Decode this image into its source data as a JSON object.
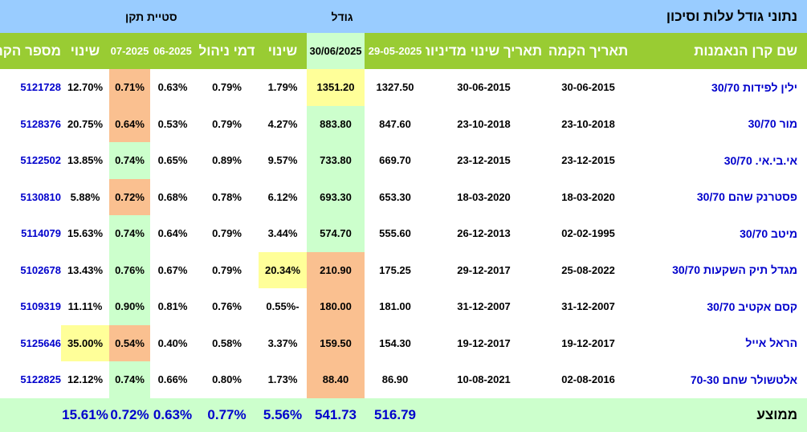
{
  "header": {
    "title": "נתוני גודל עלות וסיכון",
    "size_group": "גודל",
    "deviation_group": "סטיית תקן"
  },
  "columns": {
    "fund_name": "שם קרן הנאמנות",
    "founded": "תאריך הקמה",
    "policy_change": "תאריך שינוי מדיניות",
    "size_prev": "29-05-2025",
    "size_curr": "30/06/2025",
    "size_change": "שינוי",
    "mgmt_fee": "דמי ניהול",
    "sd_prev": "06-2025",
    "sd_curr": "07-2025",
    "sd_change": "שינוי",
    "fund_id": "מספר הקרן"
  },
  "rows": [
    {
      "name": "ילין לפידות 30/70",
      "founded": "30-06-2015",
      "policy": "30-06-2015",
      "size_prev": "1327.50",
      "size_curr": "1351.20",
      "size_change": "1.79%",
      "fee": "0.79%",
      "sd_prev": "0.63%",
      "sd_curr": "0.71%",
      "sd_change": "12.70%",
      "id": "5121728"
    },
    {
      "name": "מור 30/70",
      "founded": "23-10-2018",
      "policy": "23-10-2018",
      "size_prev": "847.60",
      "size_curr": "883.80",
      "size_change": "4.27%",
      "fee": "0.79%",
      "sd_prev": "0.53%",
      "sd_curr": "0.64%",
      "sd_change": "20.75%",
      "id": "5128376"
    },
    {
      "name": "אי.בי.אי. 30/70",
      "founded": "23-12-2015",
      "policy": "23-12-2015",
      "size_prev": "669.70",
      "size_curr": "733.80",
      "size_change": "9.57%",
      "fee": "0.89%",
      "sd_prev": "0.65%",
      "sd_curr": "0.74%",
      "sd_change": "13.85%",
      "id": "5122502"
    },
    {
      "name": "פסטרנק שהם 30/70",
      "founded": "18-03-2020",
      "policy": "18-03-2020",
      "size_prev": "653.30",
      "size_curr": "693.30",
      "size_change": "6.12%",
      "fee": "0.78%",
      "sd_prev": "0.68%",
      "sd_curr": "0.72%",
      "sd_change": "5.88%",
      "id": "5130810"
    },
    {
      "name": "מיטב 30/70",
      "founded": "02-02-1995",
      "policy": "26-12-2013",
      "size_prev": "555.60",
      "size_curr": "574.70",
      "size_change": "3.44%",
      "fee": "0.79%",
      "sd_prev": "0.64%",
      "sd_curr": "0.74%",
      "sd_change": "15.63%",
      "id": "5114079"
    },
    {
      "name": "מגדל תיק השקעות 30/70",
      "founded": "25-08-2022",
      "policy": "29-12-2017",
      "size_prev": "175.25",
      "size_curr": "210.90",
      "size_change": "20.34%",
      "fee": "0.79%",
      "sd_prev": "0.67%",
      "sd_curr": "0.76%",
      "sd_change": "13.43%",
      "id": "5102678"
    },
    {
      "name": "קסם אקטיב 30/70",
      "founded": "31-12-2007",
      "policy": "31-12-2007",
      "size_prev": "181.00",
      "size_curr": "180.00",
      "size_change": "-0.55%",
      "fee": "0.76%",
      "sd_prev": "0.81%",
      "sd_curr": "0.90%",
      "sd_change": "11.11%",
      "id": "5109319"
    },
    {
      "name": "הראל אייל",
      "founded": "19-12-2017",
      "policy": "19-12-2017",
      "size_prev": "154.30",
      "size_curr": "159.50",
      "size_change": "3.37%",
      "fee": "0.58%",
      "sd_prev": "0.40%",
      "sd_curr": "0.54%",
      "sd_change": "35.00%",
      "id": "5125646"
    },
    {
      "name": "אלטשולר שחם 70-30",
      "founded": "02-08-2016",
      "policy": "10-08-2021",
      "size_prev": "86.90",
      "size_curr": "88.40",
      "size_change": "1.73%",
      "fee": "0.80%",
      "sd_prev": "0.66%",
      "sd_curr": "0.74%",
      "sd_change": "12.12%",
      "id": "5122825"
    }
  ],
  "average": {
    "label": "ממוצע",
    "size_prev": "516.79",
    "size_curr": "541.73",
    "size_change": "5.56%",
    "fee": "0.77%",
    "sd_prev": "0.63%",
    "sd_curr": "0.72%",
    "sd_change": "15.61%"
  },
  "colors": {
    "top_band": "#99ccff",
    "header_band": "#99cc33",
    "highlight_green": "#ccffcc",
    "highlight_orange": "#fac090",
    "highlight_yellow": "#ffff99",
    "link_blue": "#0000cc"
  },
  "cell_highlights": {
    "size_curr": [
      "yellow",
      "green",
      "green",
      "green",
      "green",
      "orange",
      "orange",
      "orange",
      "orange"
    ],
    "size_change": [
      "",
      "",
      "",
      "",
      "",
      "yellow",
      "",
      "",
      ""
    ],
    "sd_curr": [
      "orange",
      "orange",
      "green",
      "orange",
      "green",
      "green",
      "green",
      "orange",
      "green"
    ],
    "sd_change": [
      "",
      "",
      "",
      "",
      "",
      "",
      "",
      "yellow",
      ""
    ]
  }
}
